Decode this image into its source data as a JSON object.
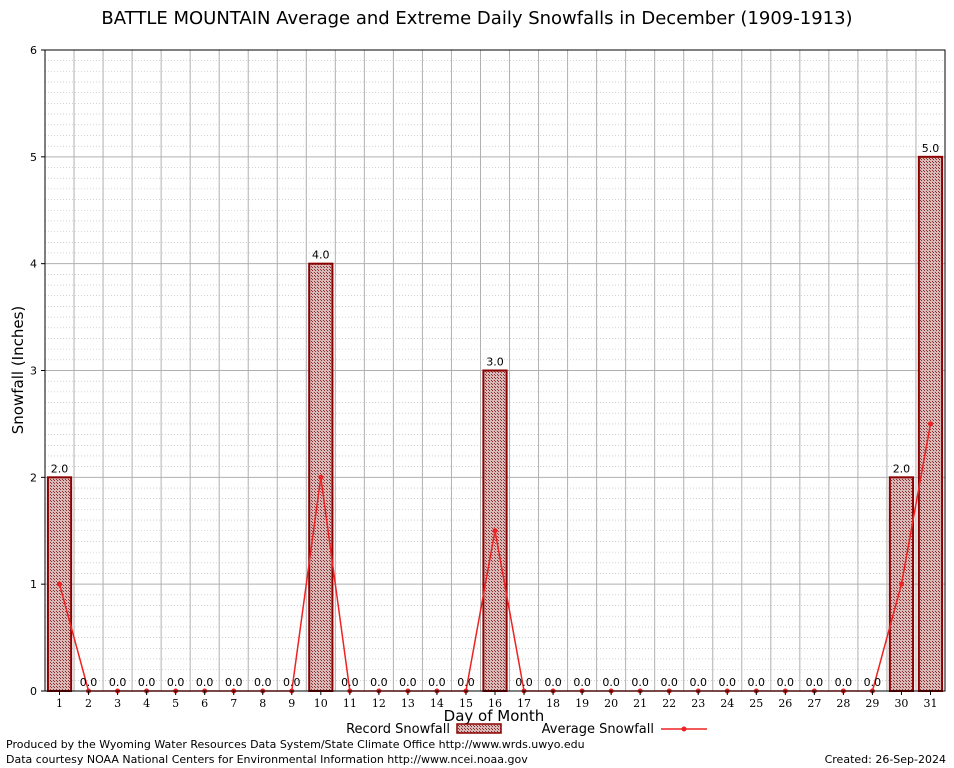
{
  "chart_data": {
    "type": "bar",
    "title": "BATTLE MOUNTAIN Average and Extreme Daily Snowfalls in December (1909-1913)",
    "xlabel": "Day of Month",
    "ylabel": "Snowfall (Inches)",
    "ylim": [
      0,
      6
    ],
    "y_ticks": [
      "0",
      "1",
      "2",
      "3",
      "4",
      "5",
      "6"
    ],
    "categories": [
      "1",
      "2",
      "3",
      "4",
      "5",
      "6",
      "7",
      "8",
      "9",
      "10",
      "11",
      "12",
      "13",
      "14",
      "15",
      "16",
      "17",
      "18",
      "19",
      "20",
      "21",
      "22",
      "23",
      "24",
      "25",
      "26",
      "27",
      "28",
      "29",
      "30",
      "31"
    ],
    "grid": true,
    "legend_position": "bottom",
    "series": [
      {
        "name": "Record Snowfall",
        "kind": "bar",
        "color": "#8b0000",
        "values": [
          2.0,
          0.0,
          0.0,
          0.0,
          0.0,
          0.0,
          0.0,
          0.0,
          0.0,
          4.0,
          0.0,
          0.0,
          0.0,
          0.0,
          0.0,
          3.0,
          0.0,
          0.0,
          0.0,
          0.0,
          0.0,
          0.0,
          0.0,
          0.0,
          0.0,
          0.0,
          0.0,
          0.0,
          0.0,
          2.0,
          5.0
        ],
        "labels": [
          "2.0",
          "0.0",
          "0.0",
          "0.0",
          "0.0",
          "0.0",
          "0.0",
          "0.0",
          "0.0",
          "4.0",
          "0.0",
          "0.0",
          "0.0",
          "0.0",
          "0.0",
          "3.0",
          "0.0",
          "0.0",
          "0.0",
          "0.0",
          "0.0",
          "0.0",
          "0.0",
          "0.0",
          "0.0",
          "0.0",
          "0.0",
          "0.0",
          "0.0",
          "2.0",
          "5.0"
        ]
      },
      {
        "name": "Average Snowfall",
        "kind": "line",
        "color": "#ee2222",
        "values": [
          1.0,
          0.0,
          0.0,
          0.0,
          0.0,
          0.0,
          0.0,
          0.0,
          0.0,
          2.0,
          0.0,
          0.0,
          0.0,
          0.0,
          0.0,
          1.5,
          0.0,
          0.0,
          0.0,
          0.0,
          0.0,
          0.0,
          0.0,
          0.0,
          0.0,
          0.0,
          0.0,
          0.0,
          0.0,
          1.0,
          2.5
        ]
      }
    ]
  },
  "footer": {
    "produced_by": "Produced by the Wyoming Water Resources Data System/State Climate Office http://www.wrds.uwyo.edu",
    "data_courtesy": "Data courtesy NOAA National Centers for Environmental Information http://www.ncei.noaa.gov",
    "created": "Created:  26-Sep-2024"
  }
}
